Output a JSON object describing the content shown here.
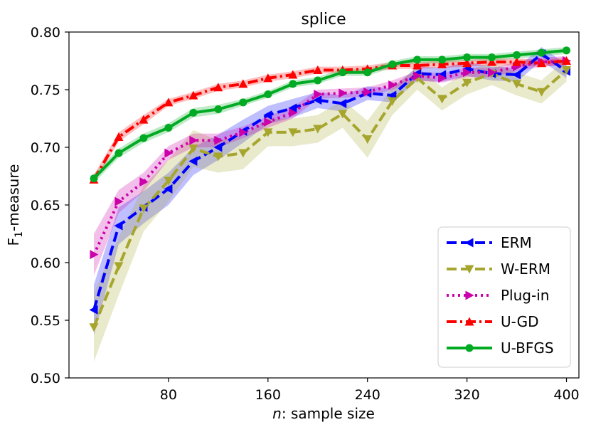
{
  "chart_data": {
    "type": "line",
    "title": "splice",
    "xlabel_italic": "n",
    "xlabel_rest": ": sample size",
    "ylabel_main": "F",
    "ylabel_sub": "1",
    "ylabel_rest": "-measure",
    "xlim": [
      0,
      410
    ],
    "ylim": [
      0.5,
      0.8
    ],
    "x_ticks": [
      80,
      160,
      240,
      320,
      400
    ],
    "x_tick_labels": [
      "80",
      "160",
      "240",
      "320",
      "400"
    ],
    "y_ticks": [
      0.5,
      0.55,
      0.6,
      0.65,
      0.7,
      0.75,
      0.8
    ],
    "y_tick_labels": [
      "0.50",
      "0.55",
      "0.60",
      "0.65",
      "0.70",
      "0.75",
      "0.80"
    ],
    "grid": false,
    "legend_position": "bottom-right",
    "x": [
      20,
      40,
      60,
      80,
      100,
      120,
      140,
      160,
      180,
      200,
      220,
      240,
      260,
      280,
      300,
      320,
      340,
      360,
      380,
      400
    ],
    "series": [
      {
        "name": "ERM",
        "color": "#0000ff",
        "dash": "dashed",
        "marker": "triangle-left",
        "values": [
          0.559,
          0.632,
          0.648,
          0.664,
          0.688,
          0.7,
          0.714,
          0.728,
          0.734,
          0.741,
          0.738,
          0.747,
          0.745,
          0.764,
          0.763,
          0.768,
          0.764,
          0.763,
          0.781,
          0.766
        ],
        "band": [
          0.022,
          0.016,
          0.014,
          0.014,
          0.012,
          0.011,
          0.01,
          0.008,
          0.008,
          0.007,
          0.007,
          0.006,
          0.006,
          0.006,
          0.006,
          0.006,
          0.006,
          0.006,
          0.006,
          0.006
        ]
      },
      {
        "name": "W-ERM",
        "color": "#a6a62e",
        "dash": "dashed",
        "marker": "triangle-down",
        "values": [
          0.544,
          0.597,
          0.647,
          0.671,
          0.699,
          0.692,
          0.695,
          0.713,
          0.713,
          0.716,
          0.729,
          0.707,
          0.74,
          0.76,
          0.742,
          0.756,
          0.764,
          0.755,
          0.748,
          0.767
        ],
        "band": [
          0.03,
          0.025,
          0.02,
          0.018,
          0.016,
          0.014,
          0.014,
          0.012,
          0.012,
          0.012,
          0.012,
          0.016,
          0.012,
          0.01,
          0.01,
          0.01,
          0.01,
          0.01,
          0.01,
          0.01
        ]
      },
      {
        "name": "Plug-in",
        "color": "#cc00aa",
        "dash": "dotted",
        "marker": "triangle-right",
        "values": [
          0.607,
          0.653,
          0.67,
          0.695,
          0.706,
          0.706,
          0.713,
          0.722,
          0.73,
          0.746,
          0.747,
          0.748,
          0.754,
          0.762,
          0.76,
          0.765,
          0.765,
          0.77,
          0.774,
          0.775
        ],
        "band": [
          0.018,
          0.01,
          0.008,
          0.006,
          0.006,
          0.006,
          0.005,
          0.005,
          0.005,
          0.004,
          0.004,
          0.004,
          0.004,
          0.004,
          0.004,
          0.004,
          0.004,
          0.004,
          0.004,
          0.004
        ]
      },
      {
        "name": "U-GD",
        "color": "#ff0000",
        "dash": "dashdot",
        "marker": "triangle-up",
        "values": [
          0.672,
          0.709,
          0.724,
          0.739,
          0.745,
          0.752,
          0.755,
          0.76,
          0.763,
          0.767,
          0.767,
          0.768,
          0.771,
          0.771,
          0.772,
          0.773,
          0.774,
          0.774,
          0.773,
          0.775
        ],
        "band": [
          0.004,
          0.004,
          0.004,
          0.003,
          0.003,
          0.003,
          0.003,
          0.003,
          0.003,
          0.003,
          0.003,
          0.003,
          0.003,
          0.003,
          0.003,
          0.003,
          0.003,
          0.003,
          0.003,
          0.003
        ]
      },
      {
        "name": "U-BFGS",
        "color": "#00aa22",
        "dash": "solid",
        "marker": "circle",
        "values": [
          0.673,
          0.695,
          0.708,
          0.717,
          0.73,
          0.733,
          0.739,
          0.746,
          0.755,
          0.758,
          0.765,
          0.765,
          0.772,
          0.776,
          0.776,
          0.778,
          0.778,
          0.78,
          0.782,
          0.784
        ],
        "band": [
          0.004,
          0.004,
          0.004,
          0.004,
          0.004,
          0.004,
          0.003,
          0.003,
          0.003,
          0.003,
          0.003,
          0.003,
          0.003,
          0.003,
          0.003,
          0.003,
          0.003,
          0.003,
          0.003,
          0.003
        ]
      }
    ]
  }
}
